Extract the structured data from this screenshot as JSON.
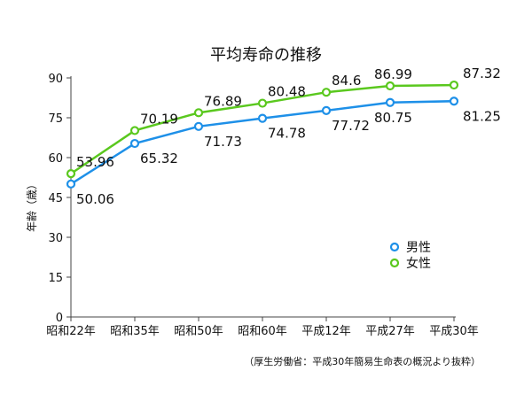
{
  "chart_data": {
    "type": "line",
    "title": "平均寿命の推移",
    "ylabel": "年齢（歳）",
    "xlabel": "",
    "categories": [
      "昭和22年",
      "昭和35年",
      "昭和50年",
      "昭和60年",
      "平成12年",
      "平成27年",
      "平成30年"
    ],
    "ylim": [
      0,
      90
    ],
    "yticks": [
      0,
      15,
      30,
      45,
      60,
      75,
      90
    ],
    "series": [
      {
        "name": "男性",
        "color": "#1e90e8",
        "values": [
          50.06,
          65.32,
          71.73,
          74.78,
          77.72,
          80.75,
          81.25
        ],
        "labels": [
          "50.06",
          "65.32",
          "71.73",
          "74.78",
          "77.72",
          "80.75",
          "81.25"
        ]
      },
      {
        "name": "女性",
        "color": "#5ac81e",
        "values": [
          53.96,
          70.19,
          76.89,
          80.48,
          84.6,
          86.99,
          87.32
        ],
        "labels": [
          "53.96",
          "70.19",
          "76.89",
          "80.48",
          "84.6",
          "86.99",
          "87.32"
        ]
      }
    ],
    "grid": false,
    "legend_position": "lower-right",
    "source_note": "（厚生労働省：平成30年簡易生命表の概況より抜粋）"
  }
}
